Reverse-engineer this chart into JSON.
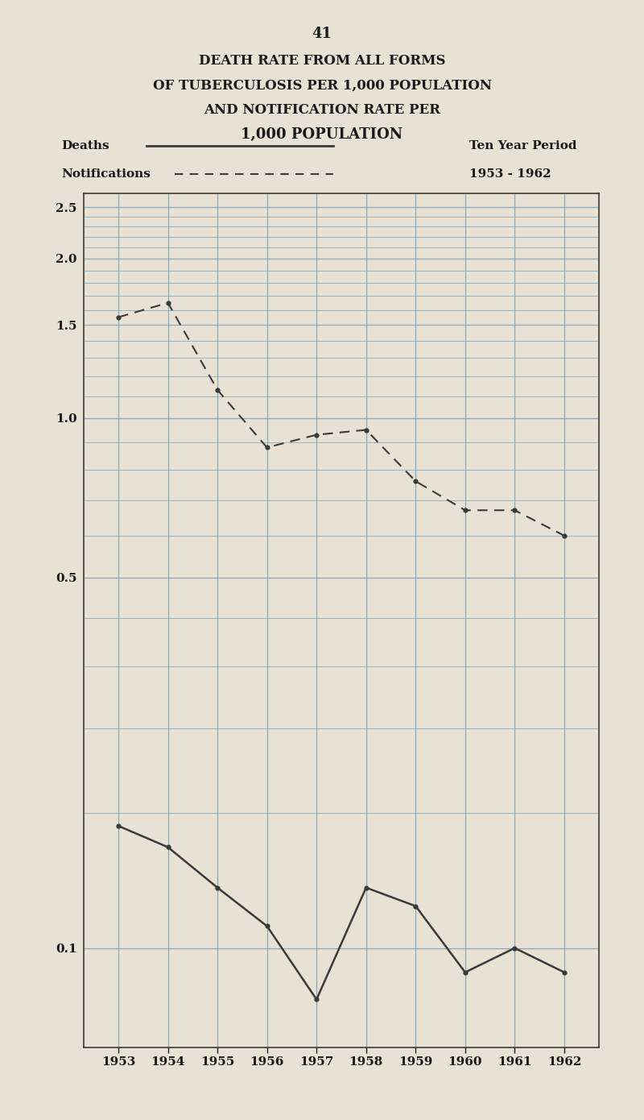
{
  "title_line1": "DEATH RATE FROM ALL FORMS",
  "title_line2": "OF TUBERCULOSIS PER 1,000 POPULATION",
  "title_line3": "AND NOTIFICATION RATE PER",
  "title_line4": "1,000 POPULATION",
  "page_number": "41",
  "legend_left1": "Deaths",
  "legend_left2": "Notifications",
  "legend_right1": "Ten Year Period",
  "legend_right2": "1953 - 1962",
  "years": [
    1953,
    1954,
    1955,
    1956,
    1957,
    1958,
    1959,
    1960,
    1961,
    1962
  ],
  "deaths": [
    0.17,
    0.155,
    0.13,
    0.11,
    0.08,
    0.13,
    0.12,
    0.09,
    0.1,
    0.09
  ],
  "notifications": [
    1.55,
    1.65,
    1.13,
    0.88,
    0.93,
    0.95,
    0.76,
    0.67,
    0.67,
    0.6
  ],
  "ylim_min": 0.065,
  "ylim_max": 2.65,
  "yticks": [
    0.1,
    0.5,
    1.0,
    1.5,
    2.0,
    2.5
  ],
  "ytick_labels": [
    "0.1",
    "0.5",
    "1.0",
    "1.5",
    "2.0",
    "2.5"
  ],
  "background_color": "#e8e2d5",
  "plot_bg_color": "#e8e2d5",
  "line_color": "#3a3a3a",
  "grid_color": "#8aaabb",
  "title_color": "#1a1a1a"
}
